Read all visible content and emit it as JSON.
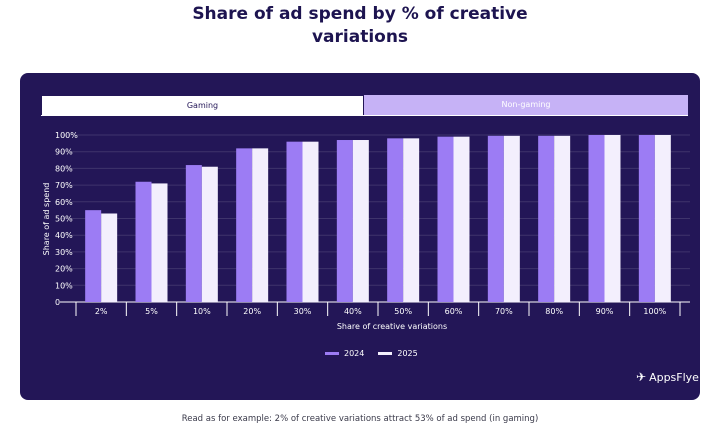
{
  "header": {
    "title_line1": "Share of ad spend by % of creative",
    "title_line2": "variations"
  },
  "tabs": [
    {
      "label": "Gaming",
      "active": true
    },
    {
      "label": "Non-gaming",
      "active": false
    }
  ],
  "colors": {
    "panel": "#231657",
    "series_2024": "#9c7cf4",
    "series_2025": "#f3effd",
    "tab_inactive": "#c6b2f6"
  },
  "logo": {
    "text": "AppsFlyer",
    "icon": "appsflyer-logo-icon"
  },
  "footnote": "Read as for example: 2% of creative variations attract 53% of ad spend (in gaming)",
  "chart_data": {
    "type": "bar",
    "xlabel": "Share of creative variations",
    "ylabel": "Share of ad spend",
    "categories": [
      "2%",
      "5%",
      "10%",
      "20%",
      "30%",
      "40%",
      "50%",
      "60%",
      "70%",
      "80%",
      "90%",
      "100%"
    ],
    "series": [
      {
        "name": "2024",
        "values": [
          55,
          72,
          82,
          92,
          96,
          97,
          98,
          99,
          99.5,
          99.5,
          100,
          100
        ]
      },
      {
        "name": "2025",
        "values": [
          53,
          71,
          81,
          92,
          96,
          97,
          98,
          99,
          99.5,
          99.5,
          100,
          100
        ]
      }
    ],
    "ylim": [
      0,
      100
    ],
    "yticks": [
      "0",
      "10%",
      "20%",
      "30%",
      "40%",
      "50%",
      "60%",
      "70%",
      "80%",
      "90%",
      "100%"
    ],
    "grid": true,
    "legend": "bottom-center"
  }
}
